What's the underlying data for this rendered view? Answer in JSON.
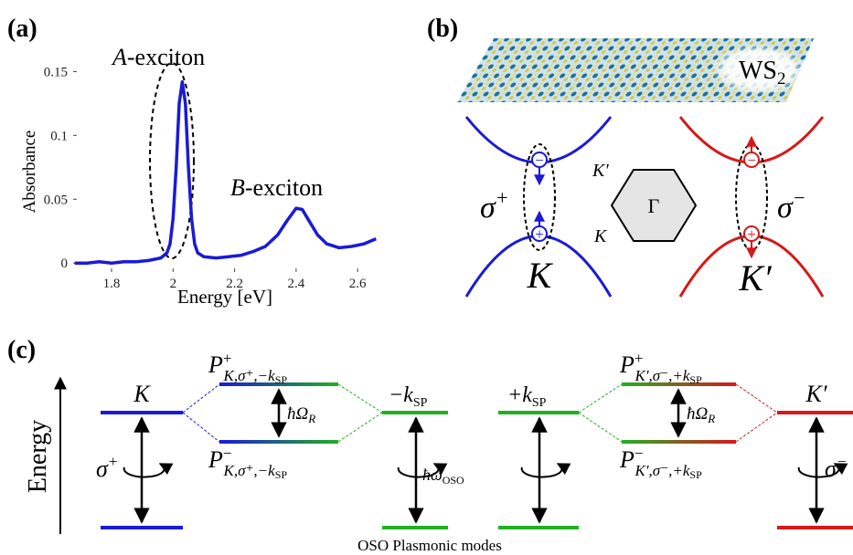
{
  "chart_data": {
    "type": "line",
    "panel_label": "(a)",
    "x": [
      1.68,
      1.72,
      1.76,
      1.8,
      1.84,
      1.88,
      1.92,
      1.96,
      1.98,
      1.99,
      2.0,
      2.01,
      2.02,
      2.03,
      2.04,
      2.05,
      2.06,
      2.07,
      2.08,
      2.1,
      2.14,
      2.18,
      2.22,
      2.26,
      2.3,
      2.34,
      2.37,
      2.4,
      2.42,
      2.44,
      2.47,
      2.5,
      2.54,
      2.58,
      2.62,
      2.66
    ],
    "values": [
      0.0,
      0.0,
      0.001,
      0.0,
      0.001,
      0.001,
      0.002,
      0.004,
      0.008,
      0.015,
      0.035,
      0.075,
      0.125,
      0.142,
      0.125,
      0.075,
      0.035,
      0.015,
      0.008,
      0.005,
      0.004,
      0.005,
      0.006,
      0.009,
      0.013,
      0.022,
      0.033,
      0.043,
      0.042,
      0.034,
      0.022,
      0.015,
      0.012,
      0.013,
      0.015,
      0.019
    ],
    "color": "#1a1ad8",
    "xlabel": "Energy [eV]",
    "ylabel": "Absorbance",
    "xlim": [
      1.675,
      2.662
    ],
    "ylim": [
      -0.007,
      0.156
    ],
    "xticks": [
      1.8,
      2,
      2.2,
      2.4,
      2.6
    ],
    "yticks": [
      0,
      0.05,
      0.1,
      0.15
    ],
    "annotations": [
      {
        "italic": "A",
        "text": "-exciton"
      },
      {
        "italic": "B",
        "text": "-exciton"
      }
    ]
  },
  "panel_b": {
    "label": "(b)",
    "material": {
      "base": "WS",
      "sub": "2"
    },
    "left_valley": {
      "polarization": {
        "base": "σ",
        "sup": "+"
      },
      "valley": "K"
    },
    "right_valley": {
      "polarization": {
        "base": "σ",
        "sup": "−"
      },
      "valley": "K′"
    },
    "brillouin_zone": {
      "top": "K′",
      "bottom": "K",
      "center": "Γ"
    },
    "electron": "−",
    "hole": "+"
  },
  "panel_c": {
    "label": "(c)",
    "axis": "Energy",
    "left_valley": {
      "name": "K",
      "polarization": {
        "base": "σ",
        "sup": "+"
      }
    },
    "left_polaritons": {
      "upper": {
        "base": "P",
        "sup": "+",
        "sub": "K,σ⁺,−k",
        "subsub": "SP"
      },
      "lower": {
        "base": "P",
        "sup": "−",
        "sub": "K,σ⁺,−k",
        "subsub": "SP"
      },
      "splitting": {
        "base": "ħΩ",
        "sub": "R"
      }
    },
    "minus_mode": {
      "base": "−k",
      "sub": "SP"
    },
    "plasmon_energy": {
      "base": "ħω",
      "sub": "OSO"
    },
    "plus_mode": {
      "base": "+k",
      "sub": "SP"
    },
    "right_polaritons": {
      "upper": {
        "base": "P",
        "sup": "+",
        "sub": "K′,σ⁻,+k",
        "subsub": "SP"
      },
      "lower": {
        "base": "P",
        "sup": "−",
        "sub": "K′,σ⁻,+k",
        "subsub": "SP"
      },
      "splitting": {
        "base": "ħΩ",
        "sub": "R"
      }
    },
    "right_valley": {
      "name": "K′",
      "polarization": {
        "base": "σ",
        "sup": "−"
      }
    },
    "caption": "OSO Plasmonic modes"
  }
}
